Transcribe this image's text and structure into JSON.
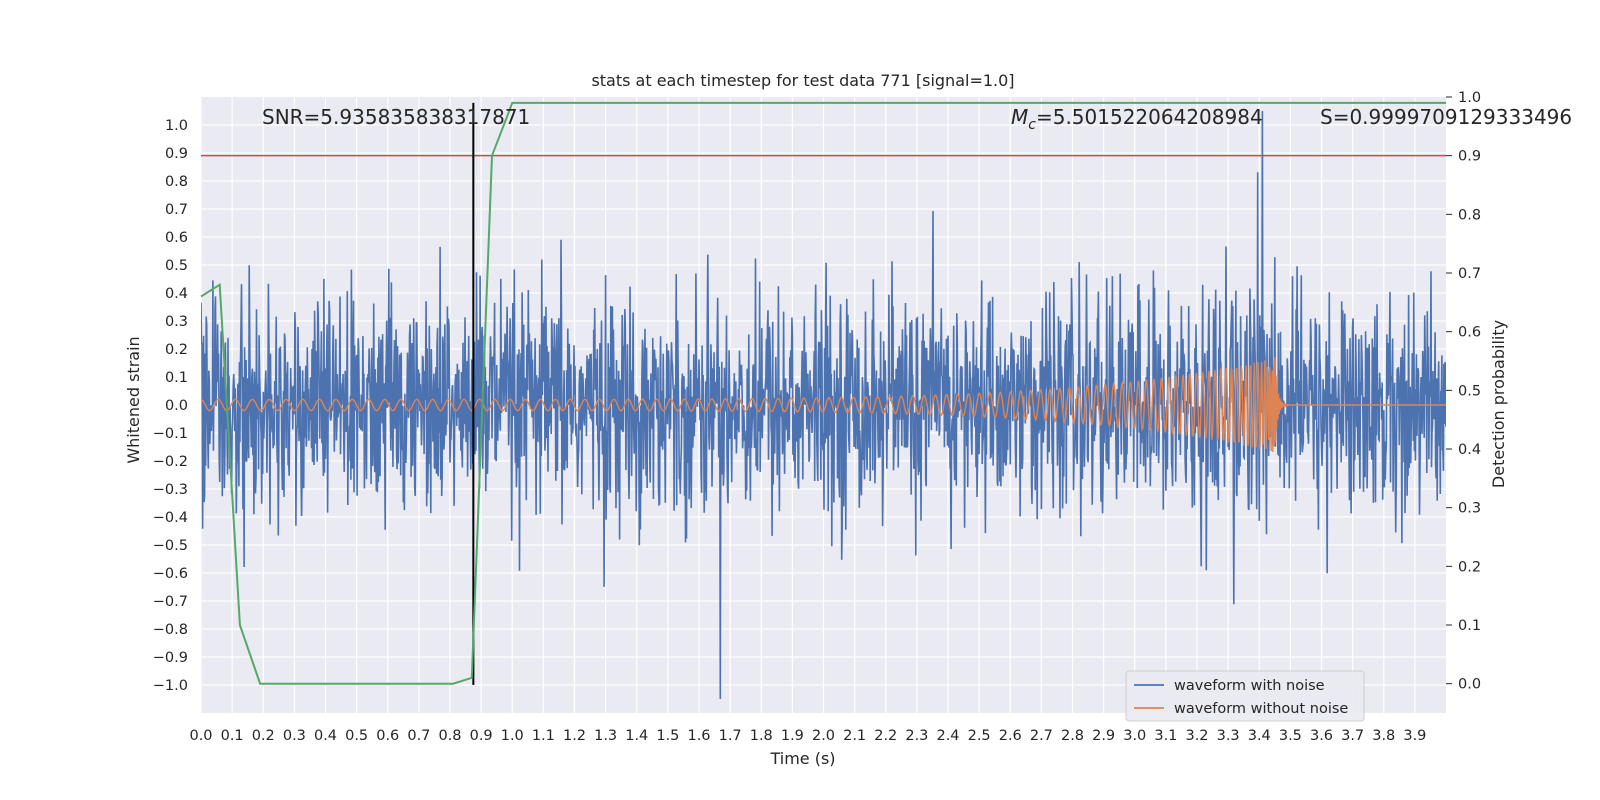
{
  "chart_data": {
    "type": "line",
    "title": "stats at each timestep for test data 771 [signal=1.0]",
    "xlabel": "Time (s)",
    "ylabel": "Whitened strain",
    "ylabel_right": "Detection probability",
    "xlim": [
      0.0,
      4.0
    ],
    "ylim": [
      -1.1,
      1.1
    ],
    "ylim_right": [
      -0.05,
      1.0
    ],
    "x_ticks": [
      "0.0",
      "0.1",
      "0.2",
      "0.3",
      "0.4",
      "0.5",
      "0.6",
      "0.7",
      "0.8",
      "0.9",
      "1.0",
      "1.1",
      "1.2",
      "1.3",
      "1.4",
      "1.5",
      "1.6",
      "1.7",
      "1.8",
      "1.9",
      "2.0",
      "2.1",
      "2.2",
      "2.3",
      "2.4",
      "2.5",
      "2.6",
      "2.7",
      "2.8",
      "2.9",
      "3.0",
      "3.1",
      "3.2",
      "3.3",
      "3.4",
      "3.5",
      "3.6",
      "3.7",
      "3.8",
      "3.9"
    ],
    "y_ticks": [
      "−1.0",
      "−0.9",
      "−0.8",
      "−0.7",
      "−0.6",
      "−0.5",
      "−0.4",
      "−0.3",
      "−0.2",
      "−0.1",
      "0.0",
      "0.1",
      "0.2",
      "0.3",
      "0.4",
      "0.5",
      "0.6",
      "0.7",
      "0.8",
      "0.9",
      "1.0"
    ],
    "y_ticks_right": [
      "0.0",
      "0.1",
      "0.2",
      "0.3",
      "0.4",
      "0.5",
      "0.6",
      "0.7",
      "0.8",
      "0.9",
      "1.0"
    ],
    "annotations": {
      "snr": "SNR=5.935835838317871",
      "mc_symbol": "M",
      "mc_sub": "c",
      "mc_value": "=5.501522064208984",
      "s": "S=0.9999709129333496"
    },
    "threshold_right": 0.9,
    "marker_time": 0.875,
    "merger_time": 3.45,
    "noise_amplitude_typical": 0.35,
    "signal_amplitude_start": 0.02,
    "signal_amplitude_peak": 0.17,
    "series": [
      {
        "name": "waveform with noise",
        "color": "#4c72b0"
      },
      {
        "name": "waveform without noise",
        "color": "#dd8452"
      },
      {
        "name": "detection probability",
        "color": "#55a868",
        "axis": "right",
        "x": [
          0.0,
          0.06,
          0.125,
          0.19,
          0.25,
          0.5,
          0.75,
          0.81,
          0.87,
          0.935,
          1.0,
          1.25,
          1.5,
          2.0,
          2.5,
          3.0,
          3.5,
          4.0
        ],
        "values": [
          0.66,
          0.68,
          0.1,
          0.0,
          0.0,
          0.0,
          0.0,
          0.0,
          0.01,
          0.9,
          0.99,
          0.99,
          0.99,
          0.99,
          0.99,
          0.99,
          0.99,
          0.99
        ]
      }
    ],
    "legend": [
      "waveform with noise",
      "waveform without noise"
    ],
    "threshold_color": "#c44e52",
    "marker_color": "#000000"
  }
}
